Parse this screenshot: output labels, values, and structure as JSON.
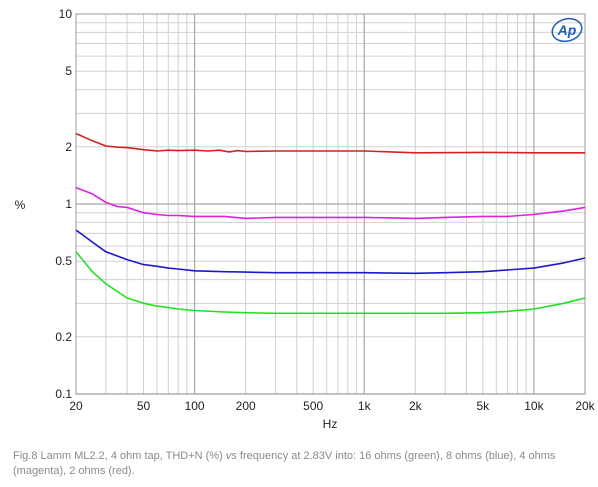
{
  "chart_data": {
    "type": "line",
    "ylabel": "%",
    "xlabel": "Hz",
    "x_scale": "log",
    "y_scale": "log",
    "xlim": [
      20,
      20000
    ],
    "ylim": [
      0.1,
      10
    ],
    "x_ticks": [
      {
        "value": 20,
        "label": "20"
      },
      {
        "value": 50,
        "label": "50"
      },
      {
        "value": 100,
        "label": "100"
      },
      {
        "value": 200,
        "label": "200"
      },
      {
        "value": 500,
        "label": "500"
      },
      {
        "value": 1000,
        "label": "1k"
      },
      {
        "value": 2000,
        "label": "2k"
      },
      {
        "value": 5000,
        "label": "5k"
      },
      {
        "value": 10000,
        "label": "10k"
      },
      {
        "value": 20000,
        "label": "20k"
      }
    ],
    "y_ticks": [
      {
        "value": 10,
        "label": "10"
      },
      {
        "value": 5,
        "label": "5"
      },
      {
        "value": 2,
        "label": "2"
      },
      {
        "value": 1,
        "label": "1"
      },
      {
        "value": 0.5,
        "label": "0.5"
      },
      {
        "value": 0.2,
        "label": "0.2"
      },
      {
        "value": 0.1,
        "label": "0.1"
      }
    ],
    "grid": true,
    "series": [
      {
        "color": "#d42020",
        "x": [
          20,
          25,
          30,
          35,
          40,
          50,
          60,
          70,
          80,
          100,
          120,
          140,
          160,
          180,
          200,
          300,
          500,
          1000,
          2000,
          5000,
          10000,
          20000
        ],
        "y": [
          2.35,
          2.15,
          2.02,
          1.99,
          1.98,
          1.93,
          1.9,
          1.92,
          1.91,
          1.92,
          1.9,
          1.92,
          1.88,
          1.91,
          1.89,
          1.9,
          1.9,
          1.9,
          1.86,
          1.87,
          1.86,
          1.86
        ]
      },
      {
        "color": "#e020e0",
        "x": [
          20,
          25,
          30,
          35,
          40,
          50,
          60,
          70,
          80,
          100,
          120,
          150,
          200,
          300,
          500,
          1000,
          2000,
          3000,
          5000,
          7000,
          10000,
          15000,
          20000
        ],
        "y": [
          1.22,
          1.13,
          1.02,
          0.97,
          0.96,
          0.9,
          0.88,
          0.87,
          0.87,
          0.86,
          0.86,
          0.86,
          0.84,
          0.85,
          0.85,
          0.85,
          0.84,
          0.85,
          0.86,
          0.86,
          0.88,
          0.92,
          0.96
        ]
      },
      {
        "color": "#1a1acc",
        "x": [
          20,
          25,
          30,
          40,
          50,
          60,
          70,
          80,
          100,
          150,
          200,
          300,
          500,
          1000,
          2000,
          3000,
          5000,
          7000,
          10000,
          15000,
          20000
        ],
        "y": [
          0.73,
          0.63,
          0.56,
          0.51,
          0.48,
          0.47,
          0.46,
          0.455,
          0.445,
          0.44,
          0.438,
          0.435,
          0.435,
          0.435,
          0.432,
          0.435,
          0.44,
          0.45,
          0.46,
          0.49,
          0.52
        ]
      },
      {
        "color": "#22e022",
        "x": [
          20,
          25,
          30,
          40,
          50,
          60,
          70,
          80,
          100,
          150,
          200,
          300,
          500,
          1000,
          2000,
          3000,
          5000,
          7000,
          10000,
          15000,
          20000
        ],
        "y": [
          0.56,
          0.44,
          0.38,
          0.32,
          0.3,
          0.29,
          0.285,
          0.28,
          0.275,
          0.27,
          0.268,
          0.266,
          0.266,
          0.266,
          0.266,
          0.266,
          0.268,
          0.272,
          0.28,
          0.3,
          0.32
        ]
      }
    ]
  },
  "caption": {
    "part1": "Fig.8 Lamm ML2.2, 4 ohm tap, THD+N (%) ",
    "italic": "vs",
    "part2": " frequency at 2.83V into: 16 ohms (green), 8 ohms (blue), 4 ohms (magenta), 2 ohms (red)."
  },
  "logo": {
    "text": "Ap",
    "color": "#1f5fb8"
  }
}
